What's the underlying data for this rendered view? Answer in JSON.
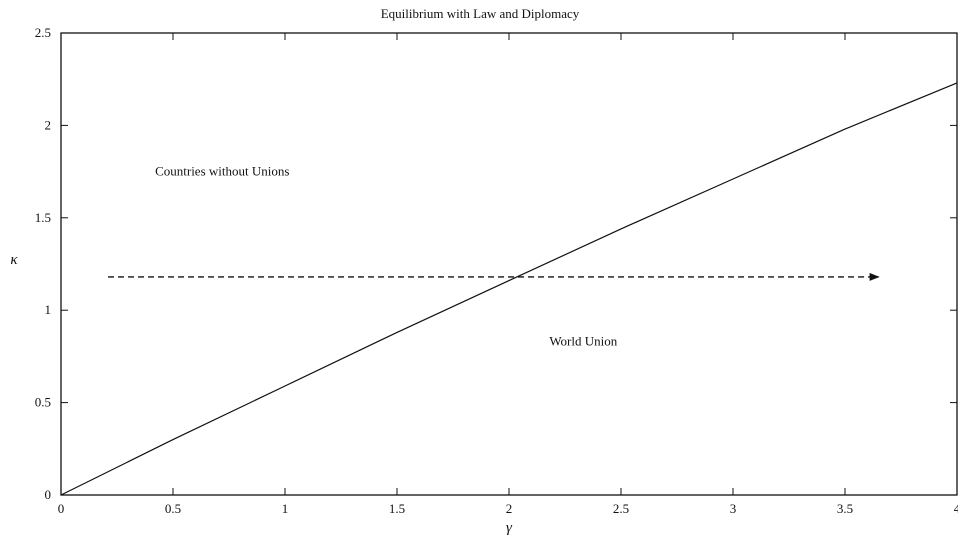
{
  "chart_data": {
    "type": "line",
    "title": "Equilibrium with Law and Diplomacy",
    "xlabel": "γ",
    "ylabel": "κ",
    "xlim": [
      0,
      4
    ],
    "ylim": [
      0,
      2.5
    ],
    "x_ticks": [
      0,
      0.5,
      1,
      1.5,
      2,
      2.5,
      3,
      3.5,
      4
    ],
    "x_tick_labels": [
      "0",
      "0.5",
      "1",
      "1.5",
      "2",
      "2.5",
      "3",
      "3.5",
      "4"
    ],
    "y_ticks": [
      0,
      0.5,
      1,
      1.5,
      2,
      2.5
    ],
    "y_tick_labels": [
      "0",
      "0.5",
      "1",
      "1.5",
      "2",
      "2.5"
    ],
    "grid": false,
    "series": [
      {
        "style": "solid",
        "color": "#111111",
        "x": [
          0,
          0.5,
          1,
          1.5,
          2,
          2.5,
          3,
          3.5,
          4
        ],
        "y": [
          0,
          0.3,
          0.59,
          0.88,
          1.16,
          1.44,
          1.71,
          1.98,
          2.23
        ]
      }
    ],
    "annotations": [
      {
        "text": "Countries without Unions",
        "x": 0.42,
        "y": 1.73
      },
      {
        "text": "World Union",
        "x": 2.18,
        "y": 0.81
      }
    ],
    "arrow": {
      "style": "dashed",
      "color": "#111111",
      "x_start": 0.21,
      "x_end": 3.65,
      "y": 1.18
    }
  }
}
